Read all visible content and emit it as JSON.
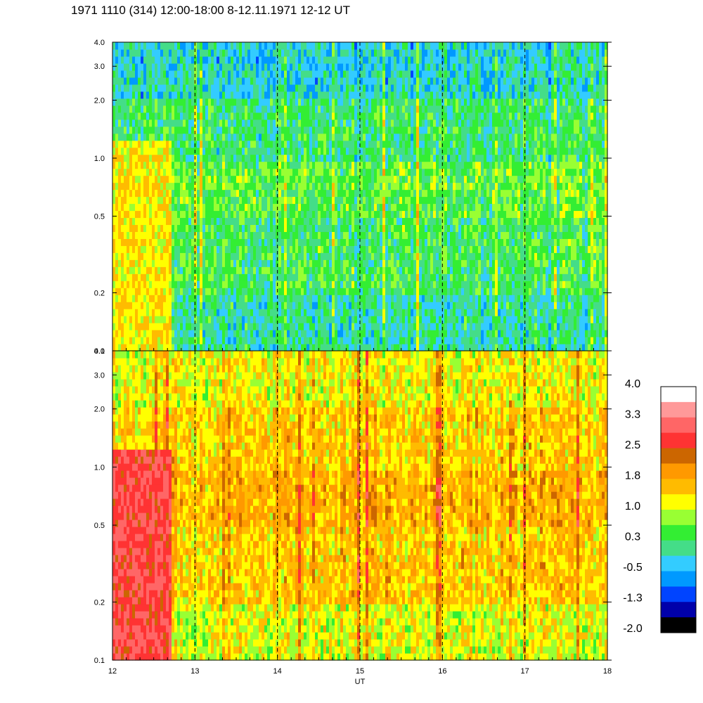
{
  "title": "1971 1110 (314) 12:00-18:00 8-12.11.1971  12-12 UT",
  "chart_data": [
    {
      "type": "heatmap",
      "panel": "upper",
      "x_range": [
        12,
        18
      ],
      "y_scale": "log",
      "y_range": [
        0.1,
        4.0
      ],
      "y_ticks": [
        "0.1",
        "0.2",
        "0.5",
        "1.0",
        "2.0",
        "3.0",
        "4.0"
      ],
      "x_ticks": [
        "12",
        "13",
        "14",
        "15",
        "16",
        "17",
        "18"
      ],
      "dashed_hours": [
        13,
        14,
        15,
        16,
        17
      ],
      "band_levels": [
        {
          "y_from": 0.1,
          "y_to": 0.2,
          "level": 0.0
        },
        {
          "y_from": 0.2,
          "y_to": 0.5,
          "level": 0.3
        },
        {
          "y_from": 0.5,
          "y_to": 1.0,
          "level": 0.5
        },
        {
          "y_from": 1.0,
          "y_to": 2.0,
          "level": 0.2
        },
        {
          "y_from": 2.0,
          "y_to": 4.0,
          "level": -0.2
        }
      ],
      "early_enhancement": {
        "x_from": 12.0,
        "x_to": 12.7,
        "level": 1.3
      }
    },
    {
      "type": "heatmap",
      "panel": "lower",
      "x_range": [
        12,
        18
      ],
      "y_scale": "log",
      "y_range": [
        0.1,
        4.0
      ],
      "y_ticks": [
        "0.1",
        "0.2",
        "0.5",
        "1.0",
        "2.0",
        "3.0",
        "4.0"
      ],
      "x_ticks": [
        "12",
        "13",
        "14",
        "15",
        "16",
        "17",
        "18"
      ],
      "xlabel": "UT",
      "dashed_hours": [
        13,
        14,
        15,
        16,
        17
      ],
      "band_levels": [
        {
          "y_from": 0.1,
          "y_to": 0.2,
          "level": 1.1
        },
        {
          "y_from": 0.2,
          "y_to": 0.5,
          "level": 1.5
        },
        {
          "y_from": 0.5,
          "y_to": 1.0,
          "level": 1.7
        },
        {
          "y_from": 1.0,
          "y_to": 2.0,
          "level": 1.5
        },
        {
          "y_from": 2.0,
          "y_to": 4.0,
          "level": 1.2
        }
      ],
      "early_enhancement": {
        "x_from": 12.0,
        "x_to": 12.7,
        "level": 2.8
      }
    }
  ],
  "colorbar": {
    "labels": [
      "4.0",
      "3.3",
      "2.5",
      "1.8",
      "1.0",
      "0.3",
      "-0.5",
      "-1.3",
      "-2.0"
    ],
    "colors": [
      "#ffffff",
      "#ff9999",
      "#ff6666",
      "#ff3333",
      "#cc6600",
      "#ff9900",
      "#ffbb00",
      "#ffff00",
      "#99ff33",
      "#33ee33",
      "#44dd88",
      "#33ccff",
      "#0099ff",
      "#0044ff",
      "#0000aa",
      "#000000"
    ]
  }
}
